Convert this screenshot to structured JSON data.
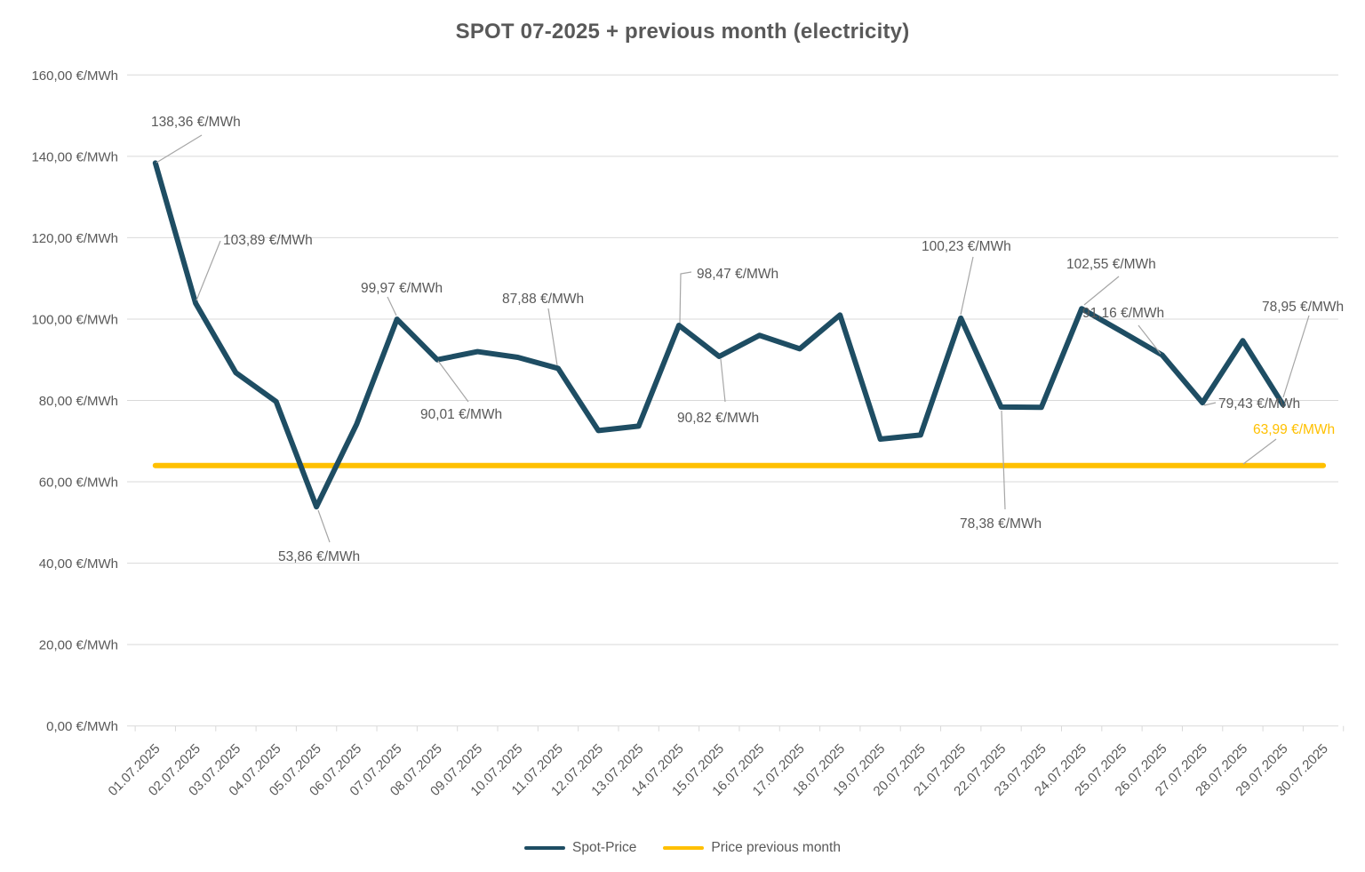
{
  "title": "SPOT 07-2025 + previous month (electricity)",
  "colors": {
    "spot": "#1E4D63",
    "previous_month": "#FFC000",
    "grid": "#D9D9D9",
    "axis_text": "#595959",
    "leader": "#A6A6A6",
    "background": "#FFFFFF"
  },
  "y_axis": {
    "unit": "€/MWh",
    "min": 0,
    "max": 160,
    "step": 20,
    "tick_labels": [
      "0,00 €/MWh",
      "20,00 €/MWh",
      "40,00 €/MWh",
      "60,00 €/MWh",
      "80,00 €/MWh",
      "100,00 €/MWh",
      "120,00 €/MWh",
      "140,00 €/MWh",
      "160,00 €/MWh"
    ]
  },
  "x_axis": {
    "labels": [
      "01.07.2025",
      "02.07.2025",
      "03.07.2025",
      "04.07.2025",
      "05.07.2025",
      "06.07.2025",
      "07.07.2025",
      "08.07.2025",
      "09.07.2025",
      "10.07.2025",
      "11.07.2025",
      "12.07.2025",
      "13.07.2025",
      "14.07.2025",
      "15.07.2025",
      "16.07.2025",
      "17.07.2025",
      "18.07.2025",
      "19.07.2025",
      "20.07.2025",
      "21.07.2025",
      "22.07.2025",
      "23.07.2025",
      "24.07.2025",
      "25.07.2025",
      "26.07.2025",
      "27.07.2025",
      "28.07.2025",
      "29.07.2025",
      "30.07.2025"
    ]
  },
  "legend": [
    {
      "label": "Spot-Price",
      "color": "#1E4D63"
    },
    {
      "label": "Price previous month",
      "color": "#FFC000"
    }
  ],
  "annotations": [
    {
      "day": 1,
      "date": "01.07.2025",
      "text": "138,36 €/MWh"
    },
    {
      "day": 2,
      "date": "02.07.2025",
      "text": "103,89 €/MWh"
    },
    {
      "day": 5,
      "date": "05.07.2025",
      "text": "53,86 €/MWh"
    },
    {
      "day": 7,
      "date": "07.07.2025",
      "text": "99,97 €/MWh"
    },
    {
      "day": 8,
      "date": "08.07.2025",
      "text": "90,01 €/MWh"
    },
    {
      "day": 11,
      "date": "11.07.2025",
      "text": "87,88 €/MWh"
    },
    {
      "day": 14,
      "date": "14.07.2025",
      "text": "98,47 €/MWh"
    },
    {
      "day": 15,
      "date": "15.07.2025",
      "text": "90,82 €/MWh"
    },
    {
      "day": 21,
      "date": "21.07.2025",
      "text": "100,23 €/MWh"
    },
    {
      "day": 22,
      "date": "22.07.2025",
      "text": "78,38 €/MWh"
    },
    {
      "day": 24,
      "date": "24.07.2025",
      "text": "102,55 €/MWh"
    },
    {
      "day": 26,
      "date": "26.07.2025",
      "text": "91,16 €/MWh"
    },
    {
      "day": 27,
      "date": "27.07.2025",
      "text": "79,43 €/MWh"
    },
    {
      "day": 29,
      "date": "29.07.2025",
      "text": "78,95 €/MWh"
    },
    {
      "day": "prev",
      "series": "prev",
      "text": "63,99 €/MWh"
    }
  ],
  "chart_data": {
    "type": "line",
    "title": "SPOT 07-2025 + previous month (electricity)",
    "x": [
      "01.07.2025",
      "02.07.2025",
      "03.07.2025",
      "04.07.2025",
      "05.07.2025",
      "06.07.2025",
      "07.07.2025",
      "08.07.2025",
      "09.07.2025",
      "10.07.2025",
      "11.07.2025",
      "12.07.2025",
      "13.07.2025",
      "14.07.2025",
      "15.07.2025",
      "16.07.2025",
      "17.07.2025",
      "18.07.2025",
      "19.07.2025",
      "20.07.2025",
      "21.07.2025",
      "22.07.2025",
      "23.07.2025",
      "24.07.2025",
      "25.07.2025",
      "26.07.2025",
      "27.07.2025",
      "28.07.2025",
      "29.07.2025",
      "30.07.2025"
    ],
    "series": [
      {
        "name": "Spot-Price",
        "color": "#1E4D63",
        "values": [
          138.36,
          103.89,
          86.8,
          79.7,
          53.86,
          74.2,
          99.97,
          90.01,
          92.0,
          90.6,
          87.88,
          72.6,
          73.7,
          98.47,
          90.82,
          96.0,
          92.7,
          101.0,
          70.5,
          71.5,
          100.23,
          78.38,
          78.3,
          102.55,
          96.9,
          91.16,
          79.43,
          94.7,
          78.95,
          null
        ]
      },
      {
        "name": "Price previous month",
        "color": "#FFC000",
        "values": [
          63.99,
          63.99,
          63.99,
          63.99,
          63.99,
          63.99,
          63.99,
          63.99,
          63.99,
          63.99,
          63.99,
          63.99,
          63.99,
          63.99,
          63.99,
          63.99,
          63.99,
          63.99,
          63.99,
          63.99,
          63.99,
          63.99,
          63.99,
          63.99,
          63.99,
          63.99,
          63.99,
          63.99,
          63.99,
          63.99
        ]
      }
    ],
    "ylabel": "€/MWh",
    "xlabel": "",
    "ylim": [
      0,
      160
    ],
    "y_tick_step": 20,
    "grid": "horizontal",
    "legend_position": "bottom"
  }
}
